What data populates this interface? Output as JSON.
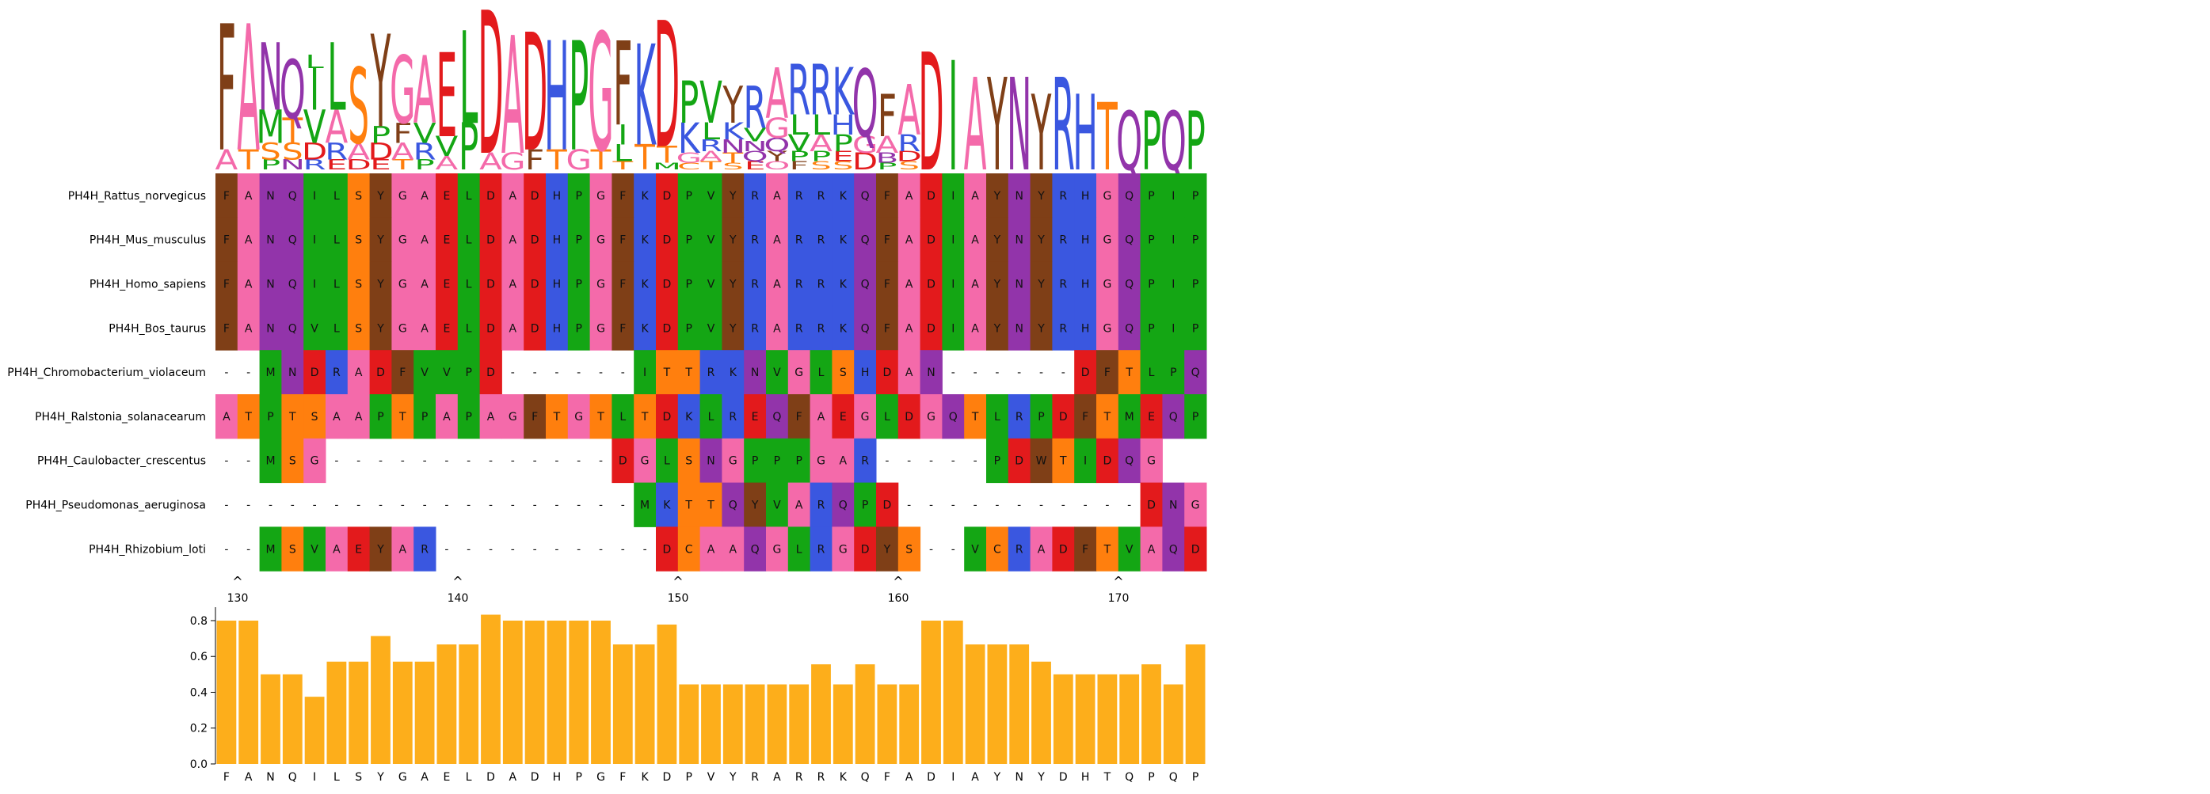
{
  "alignment": {
    "start_position": 130,
    "sequences": [
      {
        "name": "PH4H_Rattus_norvegicus",
        "seq": "FANQILSYGAELDADHPGFKDPVYRARRKQFADIAYNYRHGQPIP"
      },
      {
        "name": "PH4H_Mus_musculus",
        "seq": "FANQILSYGAELDADHPGFKDPVYRARRKQFADIAYNYRHGQPIP"
      },
      {
        "name": "PH4H_Homo_sapiens",
        "seq": "FANQILSYGAELDADHPGFKDPVYRARRKQFADIAYNYRHGQPIP"
      },
      {
        "name": "PH4H_Bos_taurus",
        "seq": "FANQVLSYGAELDADHPGFKDPVYRARRKQFADIAYNYRHGQPIP"
      },
      {
        "name": "PH4H_Chromobacterium_violaceum",
        "seq": "--MNDRADFVVPD------ITTRKNVGLSHDAN------DFTLPQP"
      },
      {
        "name": "PH4H_Ralstonia_solanacearum",
        "seq": "ATPTSAAPTPAPAGFTGTLTDKLREQFAEGLDGQTLRPDFTMEQP"
      },
      {
        "name": "PH4H_Caulobacter_crescentus",
        "seq": "--MSG-------------DGLSNGPPPGAR-----PDWTIDQG"
      },
      {
        "name": "PH4H_Pseudomonas_aeruginosa",
        "seq": "-------------------MKTTQYVARQPD-----------DNG"
      },
      {
        "name": "PH4H_Rhizobium_loti",
        "seq": "--MSVAEYAR----------DCAAQGLRGDYS--VCRADFTVAQD"
      }
    ],
    "ruler_labels": [
      "^",
      "130",
      "^",
      "140",
      "^",
      "150",
      "^",
      "160",
      "^",
      "170"
    ]
  },
  "logo": {
    "columns": [
      [
        [
          "A",
          0.12
        ],
        [
          "F",
          0.75
        ]
      ],
      [
        [
          "T",
          0.12
        ],
        [
          "A",
          0.75
        ]
      ],
      [
        [
          "P",
          0.06
        ],
        [
          "S",
          0.1
        ],
        [
          "M",
          0.2
        ],
        [
          "N",
          0.4
        ]
      ],
      [
        [
          "N",
          0.06
        ],
        [
          "S",
          0.1
        ],
        [
          "T",
          0.15
        ],
        [
          "Q",
          0.35
        ]
      ],
      [
        [
          "R",
          0.06
        ],
        [
          "D",
          0.1
        ],
        [
          "V",
          0.2
        ],
        [
          "I",
          0.25
        ],
        [
          "L",
          0.08
        ]
      ],
      [
        [
          "E",
          0.06
        ],
        [
          "R",
          0.1
        ],
        [
          "A",
          0.2
        ],
        [
          "L",
          0.4
        ]
      ],
      [
        [
          "D",
          0.06
        ],
        [
          "A",
          0.1
        ],
        [
          "S",
          0.45
        ]
      ],
      [
        [
          "E",
          0.06
        ],
        [
          "D",
          0.1
        ],
        [
          "P",
          0.1
        ],
        [
          "Y",
          0.55
        ]
      ],
      [
        [
          "T",
          0.06
        ],
        [
          "A",
          0.1
        ],
        [
          "F",
          0.12
        ],
        [
          "G",
          0.4
        ]
      ],
      [
        [
          "P",
          0.06
        ],
        [
          "R",
          0.1
        ],
        [
          "V",
          0.12
        ],
        [
          "A",
          0.4
        ]
      ],
      [
        [
          "A",
          0.08
        ],
        [
          "V",
          0.12
        ],
        [
          "E",
          0.5
        ]
      ],
      [
        [
          "P",
          0.28
        ],
        [
          "L",
          0.55
        ]
      ],
      [
        [
          "A",
          0.1
        ],
        [
          "D",
          0.85
        ]
      ],
      [
        [
          "G",
          0.1
        ],
        [
          "A",
          0.7
        ]
      ],
      [
        [
          "F",
          0.12
        ],
        [
          "D",
          0.7
        ]
      ],
      [
        [
          "T",
          0.12
        ],
        [
          "H",
          0.65
        ]
      ],
      [
        [
          "G",
          0.12
        ],
        [
          "P",
          0.65
        ]
      ],
      [
        [
          "T",
          0.12
        ],
        [
          "G",
          0.7
        ]
      ],
      [
        [
          "T",
          0.05
        ],
        [
          "L",
          0.1
        ],
        [
          "I",
          0.12
        ],
        [
          "F",
          0.5
        ]
      ],
      [
        [
          "T",
          0.15
        ],
        [
          "K",
          0.6
        ]
      ],
      [
        [
          "M",
          0.04
        ],
        [
          "T",
          0.1
        ],
        [
          "D",
          0.75
        ]
      ],
      [
        [
          "C",
          0.04
        ],
        [
          "G",
          0.06
        ],
        [
          "K",
          0.18
        ],
        [
          "P",
          0.25
        ]
      ],
      [
        [
          "T",
          0.05
        ],
        [
          "A",
          0.06
        ],
        [
          "R",
          0.07
        ],
        [
          "L",
          0.1
        ],
        [
          "V",
          0.25
        ]
      ],
      [
        [
          "S",
          0.04
        ],
        [
          "T",
          0.06
        ],
        [
          "N",
          0.08
        ],
        [
          "K",
          0.1
        ],
        [
          "Y",
          0.22
        ]
      ],
      [
        [
          "E",
          0.05
        ],
        [
          "Q",
          0.06
        ],
        [
          "N",
          0.06
        ],
        [
          "V",
          0.08
        ],
        [
          "R",
          0.25
        ]
      ],
      [
        [
          "O",
          0.05
        ],
        [
          "Y",
          0.06
        ],
        [
          "Q",
          0.08
        ],
        [
          "G",
          0.12
        ],
        [
          "A",
          0.3
        ]
      ],
      [
        [
          "F",
          0.05
        ],
        [
          "P",
          0.06
        ],
        [
          "V",
          0.1
        ],
        [
          "L",
          0.12
        ],
        [
          "R",
          0.3
        ]
      ],
      [
        [
          "S",
          0.05
        ],
        [
          "P",
          0.06
        ],
        [
          "A",
          0.1
        ],
        [
          "L",
          0.12
        ],
        [
          "R",
          0.3
        ]
      ],
      [
        [
          "S",
          0.05
        ],
        [
          "E",
          0.06
        ],
        [
          "P",
          0.1
        ],
        [
          "H",
          0.12
        ],
        [
          "K",
          0.28
        ]
      ],
      [
        [
          "D",
          0.1
        ],
        [
          "G",
          0.1
        ],
        [
          "Q",
          0.4
        ]
      ],
      [
        [
          "P",
          0.04
        ],
        [
          "B",
          0.06
        ],
        [
          "A",
          0.1
        ],
        [
          "F",
          0.25
        ]
      ],
      [
        [
          "S",
          0.05
        ],
        [
          "D",
          0.06
        ],
        [
          "R",
          0.1
        ],
        [
          "A",
          0.3
        ]
      ],
      [
        [
          "D",
          0.7
        ]
      ],
      [
        [
          "I",
          0.65
        ]
      ],
      [
        [
          "A",
          0.55
        ]
      ],
      [
        [
          "Y",
          0.55
        ]
      ],
      [
        [
          "N",
          0.55
        ]
      ],
      [
        [
          "Y",
          0.45
        ]
      ],
      [
        [
          "R",
          0.55
        ]
      ],
      [
        [
          "H",
          0.45
        ]
      ],
      [
        [
          "T",
          0.4
        ]
      ],
      [
        [
          "Q",
          0.35
        ]
      ],
      [
        [
          "P",
          0.35
        ]
      ],
      [
        [
          "Q",
          0.35
        ]
      ],
      [
        [
          "P",
          0.35
        ]
      ]
    ]
  },
  "colors": {
    "D": "#e31a1c",
    "E": "#e31a1c",
    "F": "#7f3f17",
    "W": "#7f3f17",
    "Y": "#7f3f17",
    "A": "#f46aaa",
    "G": "#f46aaa",
    "N": "#9234aa",
    "Q": "#9234aa",
    "S": "#ff7f0e",
    "T": "#ff7f0e",
    "C": "#ff7f0e",
    "R": "#3a57e0",
    "K": "#3a57e0",
    "H": "#3a57e0",
    "I": "#14a614",
    "L": "#14a614",
    "V": "#14a614",
    "M": "#14a614",
    "P": "#14a614",
    "B": "#9234aa",
    "O": "#f46aaa",
    "gap": "#ffffff",
    "bar": "#fdae1b"
  },
  "chart_data": {
    "type": "bar",
    "categories": [
      "F",
      "A",
      "N",
      "Q",
      "I",
      "L",
      "S",
      "Y",
      "G",
      "A",
      "E",
      "L",
      "D",
      "A",
      "D",
      "H",
      "P",
      "G",
      "F",
      "K",
      "D",
      "P",
      "V",
      "Y",
      "R",
      "A",
      "R",
      "R",
      "K",
      "Q",
      "F",
      "A",
      "D",
      "I",
      "A",
      "Y",
      "N",
      "Y",
      "D",
      "H",
      "T",
      "Q",
      "P",
      "Q",
      "P"
    ],
    "values": [
      0.8,
      0.8,
      0.5,
      0.5,
      0.375,
      0.571,
      0.571,
      0.714,
      0.571,
      0.571,
      0.667,
      0.667,
      0.833,
      0.8,
      0.8,
      0.8,
      0.8,
      0.8,
      0.667,
      0.667,
      0.778,
      0.444,
      0.444,
      0.444,
      0.444,
      0.444,
      0.444,
      0.556,
      0.444,
      0.556,
      0.444,
      0.444,
      0.8,
      0.8,
      0.667,
      0.667,
      0.667,
      0.571,
      0.5,
      0.5,
      0.5,
      0.5,
      0.556,
      0.444,
      0.667
    ],
    "ylim": [
      0,
      0.875
    ],
    "yticks": [
      "0.0",
      "0.2",
      "0.4",
      "0.6",
      "0.8"
    ],
    "grid": false
  }
}
